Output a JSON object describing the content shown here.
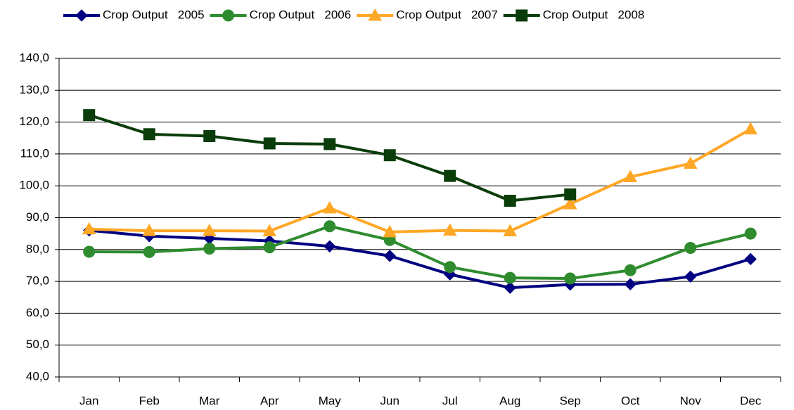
{
  "chart_data": {
    "type": "line",
    "categories": [
      "Jan",
      "Feb",
      "Mar",
      "Apr",
      "May",
      "Jun",
      "Jul",
      "Aug",
      "Sep",
      "Oct",
      "Nov",
      "Dec"
    ],
    "series": [
      {
        "name": "Crop Output   2005",
        "color": "#000080",
        "marker": "diamond",
        "values": [
          86,
          84.2,
          83.5,
          82.7,
          81,
          78,
          72.2,
          68,
          69,
          69.1,
          71.5,
          77
        ]
      },
      {
        "name": "Crop Output   2006",
        "color": "#2e8b2e",
        "marker": "circle",
        "values": [
          79.3,
          79.2,
          80.3,
          80.7,
          87.3,
          83,
          74.5,
          71.1,
          70.9,
          73.5,
          80.5,
          85
        ]
      },
      {
        "name": "Crop Output   2007",
        "color": "#ffa726",
        "marker": "triangle",
        "values": [
          86.4,
          85.9,
          85.9,
          85.8,
          93,
          85.5,
          86,
          85.8,
          94.3,
          102.8,
          107,
          117.8
        ]
      },
      {
        "name": "Crop Output   2008",
        "color": "#0a3d0a",
        "marker": "square",
        "values": [
          122.2,
          116.2,
          115.6,
          113.3,
          113.1,
          109.6,
          103.1,
          95.3,
          97.3,
          null,
          null,
          null
        ]
      }
    ],
    "ylim": [
      40,
      140
    ],
    "yticks": [
      {
        "value": 40,
        "label": "40,0"
      },
      {
        "value": 50,
        "label": "50,0"
      },
      {
        "value": 60,
        "label": "60,0"
      },
      {
        "value": 70,
        "label": "70,0"
      },
      {
        "value": 80,
        "label": "80,0"
      },
      {
        "value": 90,
        "label": "90,0"
      },
      {
        "value": 100,
        "label": "100,0"
      },
      {
        "value": 110,
        "label": "110,0"
      },
      {
        "value": 120,
        "label": "120,0"
      },
      {
        "value": 130,
        "label": "130,0"
      },
      {
        "value": 140,
        "label": "140,0"
      }
    ],
    "grid": true,
    "legend": "top"
  }
}
